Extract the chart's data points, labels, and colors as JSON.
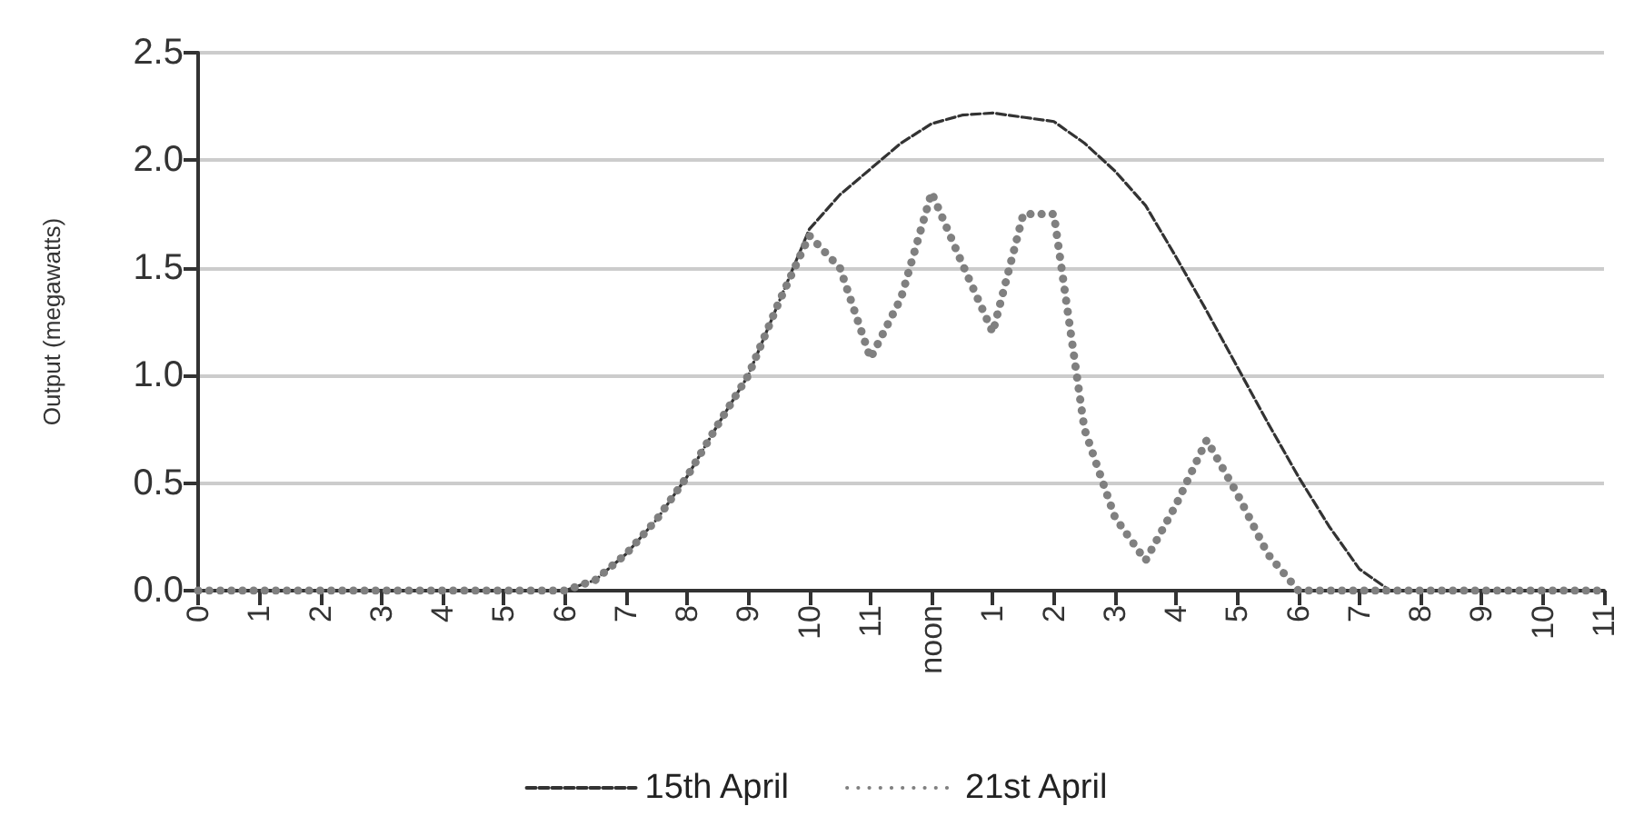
{
  "chart_data": {
    "type": "line",
    "ylabel": "Output (megawatts)",
    "ylim": [
      0,
      2.5
    ],
    "categories": [
      "0",
      null,
      "1",
      null,
      "2",
      null,
      "3",
      null,
      "4",
      null,
      "5",
      null,
      "6",
      null,
      "7",
      null,
      "8",
      null,
      "9",
      null,
      "10",
      null,
      "11",
      null,
      "noon",
      null,
      "1",
      null,
      "2",
      null,
      "3",
      null,
      "4",
      null,
      "5",
      null,
      "6",
      null,
      "7",
      null,
      "8",
      null,
      "9",
      null,
      "10",
      null,
      "11"
    ],
    "yticks": [
      {
        "value": 0,
        "label": "0.0"
      },
      0.5,
      {
        "value": 1,
        "label": "1.0"
      },
      1.5,
      {
        "value": 2,
        "label": "2.0"
      },
      2.5
    ],
    "grid": "y",
    "legend": "bottom",
    "marker": "none",
    "series": [
      {
        "name": "15th April",
        "color": "#333333",
        "line_style": "dashed",
        "values": [
          0,
          0,
          0,
          0,
          0,
          0,
          0,
          0,
          0,
          0,
          0,
          0,
          0,
          0.05,
          0.17,
          0.33,
          0.53,
          0.77,
          1.0,
          1.34,
          1.68,
          1.84,
          1.96,
          2.08,
          2.17,
          2.21,
          2.22,
          2.2,
          2.18,
          2.08,
          1.95,
          1.79,
          1.55,
          1.3,
          1.04,
          0.78,
          0.53,
          0.3,
          0.1,
          0,
          0,
          0,
          0,
          0,
          0,
          0,
          0
        ]
      },
      {
        "name": "21st April",
        "color": "#808080",
        "line_style": "dotted",
        "values": [
          0,
          0,
          0,
          0,
          0,
          0,
          0,
          0,
          0,
          0,
          0,
          0,
          0,
          0.05,
          0.17,
          0.33,
          0.53,
          0.77,
          1.0,
          1.34,
          1.65,
          1.5,
          1.08,
          1.36,
          1.85,
          1.52,
          1.2,
          1.75,
          1.75,
          0.75,
          0.34,
          0.14,
          0.4,
          0.7,
          0.45,
          0.17,
          0,
          0,
          0,
          0,
          0,
          0,
          0,
          0,
          0,
          0,
          0
        ]
      }
    ]
  }
}
